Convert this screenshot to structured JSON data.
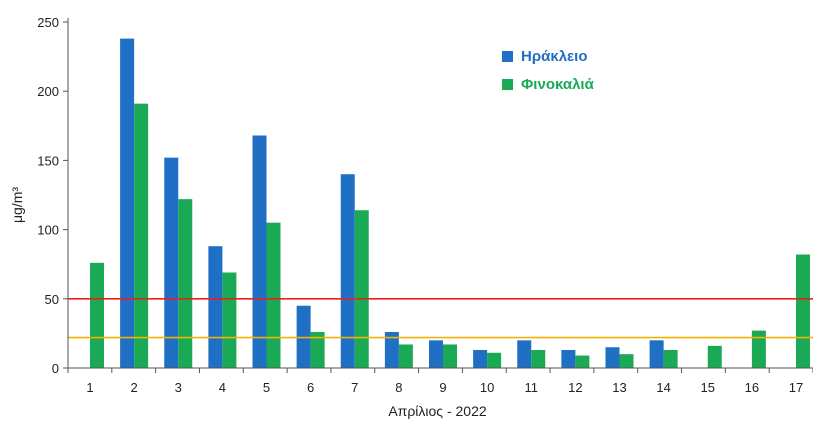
{
  "chart_data": {
    "type": "bar",
    "xlabel": "Απρίλιος - 2022",
    "ylabel": "μg/m³",
    "ylim": [
      0,
      250
    ],
    "yticks": [
      0,
      50,
      100,
      150,
      200,
      250
    ],
    "categories": [
      "1",
      "2",
      "3",
      "4",
      "5",
      "6",
      "7",
      "8",
      "9",
      "10",
      "11",
      "12",
      "13",
      "14",
      "15",
      "16",
      "17"
    ],
    "series": [
      {
        "name": "Ηράκλειο",
        "color": "#1f6fc5",
        "values": [
          null,
          238,
          152,
          88,
          168,
          45,
          140,
          26,
          20,
          13,
          20,
          13,
          15,
          20,
          null,
          null,
          null
        ]
      },
      {
        "name": "Φινοκαλιά",
        "color": "#1aaa55",
        "values": [
          76,
          191,
          122,
          69,
          105,
          26,
          114,
          17,
          17,
          11,
          13,
          9,
          10,
          13,
          16,
          27,
          82
        ]
      }
    ],
    "reference_lines": [
      {
        "value": 50,
        "color": "#e8201e"
      },
      {
        "value": 22,
        "color": "#f2b400"
      }
    ],
    "legend_position": "top-center",
    "grid": false
  }
}
